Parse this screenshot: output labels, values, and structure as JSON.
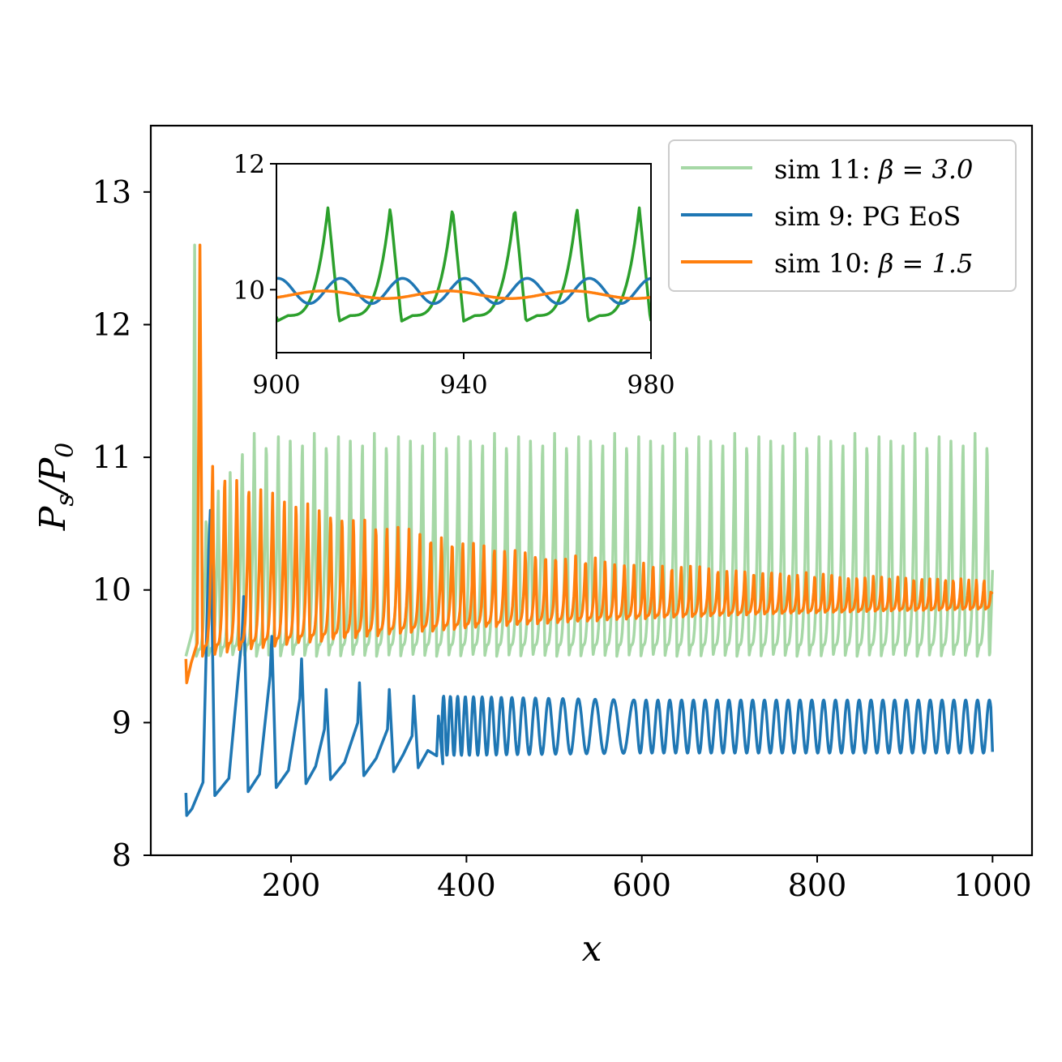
{
  "chart_data": [
    {
      "type": "line",
      "title": "",
      "xlabel": "x",
      "ylabel": "P_s/P_0",
      "xlim": [
        40,
        1045
      ],
      "ylim": [
        8,
        13.5
      ],
      "xticks": [
        200,
        400,
        600,
        800,
        1000
      ],
      "yticks": [
        8,
        9,
        10,
        11,
        12,
        13
      ],
      "xtick_labels": [
        "200",
        "400",
        "600",
        "800",
        "1000"
      ],
      "ytick_labels": [
        "8",
        "9",
        "10",
        "11",
        "12",
        "13"
      ],
      "grid": false,
      "legend_position": "top-right",
      "series": [
        {
          "name": "sim 11: β = 3.0",
          "color": "#a6d8a6",
          "start": 80,
          "end": 1000,
          "baseline": 9.5,
          "peak": 11.2,
          "initial_spike": 12.6,
          "period": 13.7,
          "description_values": {
            "min": 9.47,
            "max": 11.25
          }
        },
        {
          "name": "sim 9: PG EoS",
          "color": "#1f77b4",
          "start": 80,
          "end": 1000,
          "early_peaks": [
            10.6,
            9.95,
            9.65,
            9.48,
            9.25,
            9.3,
            9.25,
            9.2,
            9.05
          ],
          "late_range": [
            8.78,
            9.17
          ],
          "initial_value": 8.3
        },
        {
          "name": "sim 10: β = 1.5",
          "color": "#ff7f0e",
          "start": 80,
          "end": 1000,
          "initial_spike": 12.6,
          "peak_start": 11.0,
          "peak_end": 10.05,
          "trough_start": 9.5,
          "trough_end": 9.9,
          "final_value": 9.97
        }
      ]
    },
    {
      "type": "line",
      "title": "",
      "xlabel": "",
      "ylabel": "",
      "xlim": [
        900,
        980
      ],
      "ylim": [
        9,
        12
      ],
      "xticks": [
        900,
        940,
        980
      ],
      "yticks": [
        10,
        12
      ],
      "xtick_labels": [
        "900",
        "940",
        "980"
      ],
      "ytick_labels": [
        "10",
        "12"
      ],
      "series": [
        {
          "color": "#2ca02c",
          "min": 9.5,
          "max": 11.3,
          "period": 13.3,
          "phase": 911
        },
        {
          "color": "#1f77b4",
          "min": 9.8,
          "max": 10.2,
          "period": 13.3
        },
        {
          "color": "#ff7f0e",
          "min": 9.85,
          "max": 10.02,
          "period": 13.3
        }
      ]
    }
  ],
  "legend": {
    "items": [
      {
        "prefix": "sim 11: ",
        "math": "β = 3.0"
      },
      {
        "prefix": "sim 9: ",
        "math": "PG EoS"
      },
      {
        "prefix": "sim 10: ",
        "math": "β = 1.5"
      }
    ]
  }
}
